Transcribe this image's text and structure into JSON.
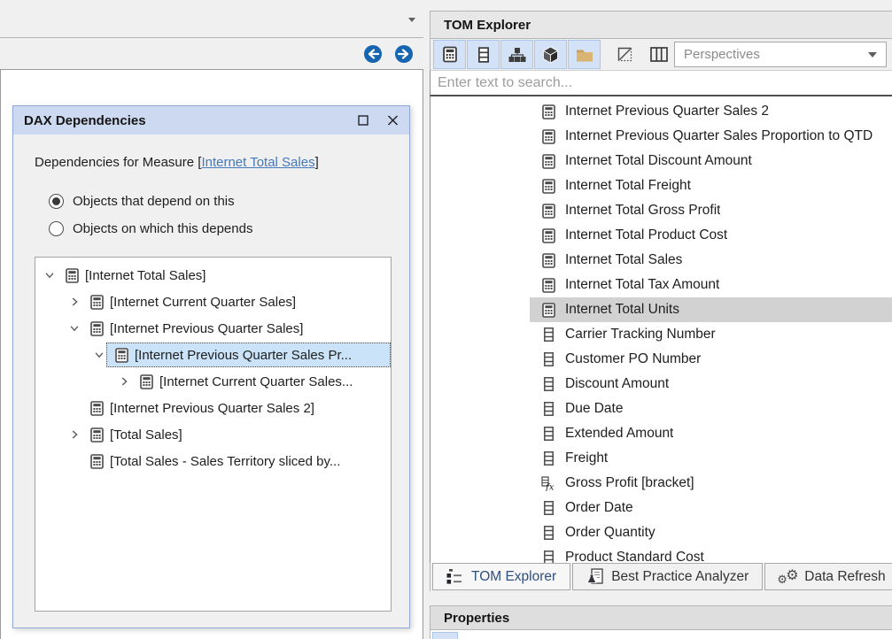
{
  "dialog": {
    "title": "DAX Dependencies",
    "intro_prefix": "Dependencies for Measure [",
    "intro_link": "Internet Total Sales",
    "intro_suffix": "]",
    "radios": [
      {
        "label": "Objects that depend on this",
        "selected": true
      },
      {
        "label": "Objects on which this depends",
        "selected": false
      }
    ],
    "tree": [
      {
        "label": "[Internet Total Sales]",
        "level": 0,
        "expander": "expanded",
        "selected": false
      },
      {
        "label": "[Internet Current Quarter Sales]",
        "level": 1,
        "expander": "collapsed",
        "selected": false
      },
      {
        "label": "[Internet Previous Quarter Sales]",
        "level": 1,
        "expander": "expanded",
        "selected": false
      },
      {
        "label": "[Internet Previous Quarter Sales Pr...",
        "level": 2,
        "expander": "expanded",
        "selected": true
      },
      {
        "label": "[Internet Current Quarter Sales...",
        "level": 3,
        "expander": "collapsed",
        "selected": false
      },
      {
        "label": "[Internet Previous Quarter Sales 2]",
        "level": 1,
        "expander": "none",
        "selected": false
      },
      {
        "label": "[Total Sales]",
        "level": 1,
        "expander": "collapsed",
        "selected": false
      },
      {
        "label": "[Total Sales - Sales Territory sliced by...",
        "level": 1,
        "expander": "none",
        "selected": false
      }
    ]
  },
  "tom_explorer": {
    "title": "TOM Explorer",
    "toolbar": {
      "buttons": [
        {
          "icon": "measure-filter-icon",
          "active": true
        },
        {
          "icon": "column-filter-icon",
          "active": true
        },
        {
          "icon": "hierarchy-filter-icon",
          "active": true
        },
        {
          "icon": "perspective-cube-icon",
          "active": true
        },
        {
          "icon": "folder-filter-icon",
          "active": true
        },
        {
          "icon": "partition-filter-icon",
          "active": false
        },
        {
          "icon": "table-columns-icon",
          "active": false
        }
      ],
      "perspectives_placeholder": "Perspectives"
    },
    "search_placeholder": "Enter text to search...",
    "items": [
      {
        "label": "Internet Previous Quarter Sales 2",
        "icon": "measure",
        "selected": false
      },
      {
        "label": "Internet Previous Quarter Sales Proportion to QTD",
        "icon": "measure",
        "selected": false
      },
      {
        "label": "Internet Total Discount Amount",
        "icon": "measure",
        "selected": false
      },
      {
        "label": "Internet Total Freight",
        "icon": "measure",
        "selected": false
      },
      {
        "label": "Internet Total Gross Profit",
        "icon": "measure",
        "selected": false
      },
      {
        "label": "Internet Total Product Cost",
        "icon": "measure",
        "selected": false
      },
      {
        "label": "Internet Total Sales",
        "icon": "measure",
        "selected": false
      },
      {
        "label": "Internet Total Tax Amount",
        "icon": "measure",
        "selected": false
      },
      {
        "label": "Internet Total Units",
        "icon": "measure",
        "selected": true
      },
      {
        "label": "Carrier Tracking Number",
        "icon": "column",
        "selected": false
      },
      {
        "label": "Customer PO Number",
        "icon": "column",
        "selected": false
      },
      {
        "label": "Discount Amount",
        "icon": "column",
        "selected": false
      },
      {
        "label": "Due Date",
        "icon": "column",
        "selected": false
      },
      {
        "label": "Extended Amount",
        "icon": "column",
        "selected": false
      },
      {
        "label": "Freight",
        "icon": "column",
        "selected": false
      },
      {
        "label": "Gross Profit [bracket]",
        "icon": "calc-column",
        "selected": false
      },
      {
        "label": "Order Date",
        "icon": "column",
        "selected": false
      },
      {
        "label": "Order Quantity",
        "icon": "column",
        "selected": false
      },
      {
        "label": "Product Standard Cost",
        "icon": "column",
        "selected": false
      }
    ],
    "tabs": [
      {
        "label": "TOM Explorer",
        "icon": "tree-list-icon",
        "active": true
      },
      {
        "label": "Best Practice Analyzer",
        "icon": "analyzer-flask-icon",
        "active": false
      },
      {
        "label": "Data Refresh",
        "icon": "gears-icon",
        "active": false
      }
    ]
  },
  "properties": {
    "title": "Properties"
  },
  "colors": {
    "dialog_titlebar": "#ccd9f0",
    "selection_blue": "#cbe3f8",
    "selection_grey": "#d2d2d2",
    "toggled_button": "#d3e2f6",
    "link": "#4577bb",
    "nav_button": "#1565b0",
    "folder": "#d9b472"
  }
}
